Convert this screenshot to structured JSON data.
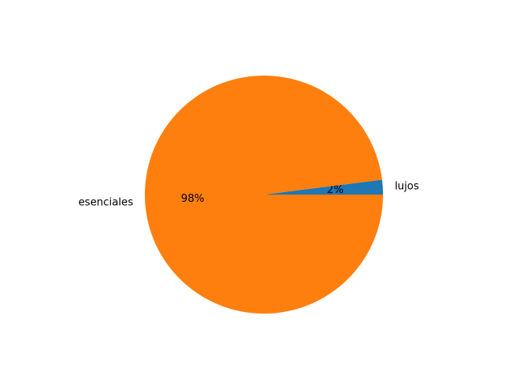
{
  "chart_data": {
    "type": "pie",
    "title": "",
    "slices": [
      {
        "label": "lujos",
        "value": 2,
        "pct_label": "2%",
        "color": "#1f77b4"
      },
      {
        "label": "esenciales",
        "value": 98,
        "pct_label": "98%",
        "color": "#ff7f0e"
      }
    ],
    "start_angle_deg": 0,
    "direction": "counterclockwise"
  }
}
